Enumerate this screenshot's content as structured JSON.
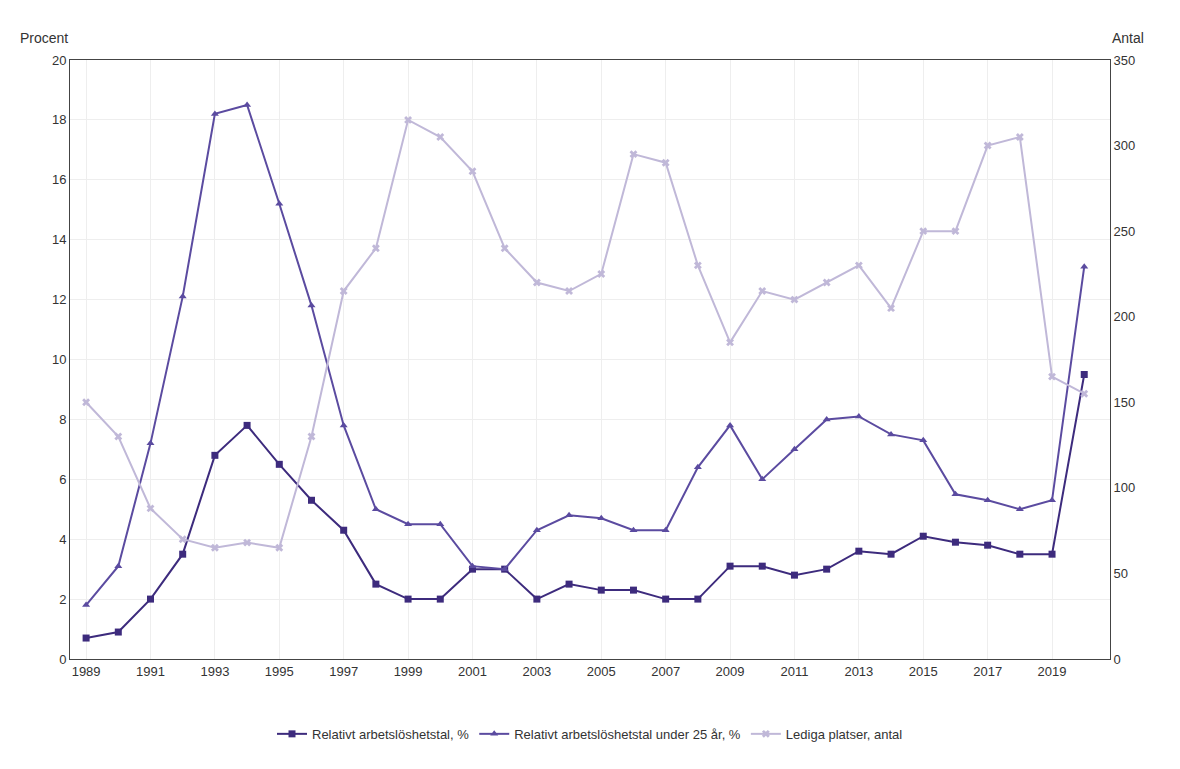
{
  "chart_data": {
    "type": "line",
    "ylabel": "Procent",
    "y2label": "Antal",
    "x": [
      1989,
      1990,
      1991,
      1992,
      1993,
      1994,
      1995,
      1996,
      1997,
      1998,
      1999,
      2000,
      2001,
      2002,
      2003,
      2004,
      2005,
      2006,
      2007,
      2008,
      2009,
      2010,
      2011,
      2012,
      2013,
      2014,
      2015,
      2016,
      2017,
      2018,
      2019,
      2020
    ],
    "series": [
      {
        "name": "Relativt arbetslöshetstal, %",
        "color": "#3D2B7D",
        "marker": "square",
        "values": [
          0.7,
          0.9,
          2.0,
          3.5,
          6.8,
          7.8,
          6.5,
          5.3,
          4.3,
          2.5,
          2.0,
          2.0,
          3.0,
          3.0,
          2.0,
          2.5,
          2.3,
          2.3,
          2.0,
          2.0,
          3.1,
          3.1,
          2.8,
          3.0,
          3.6,
          3.5,
          4.1,
          3.9,
          3.8,
          3.5,
          3.5,
          9.5
        ]
      },
      {
        "name": "Relativt arbetslöshetstal under 25 år, %",
        "color": "#5B4BA0",
        "marker": "triangle-up",
        "values": [
          1.8,
          3.1,
          7.2,
          12.1,
          18.2,
          18.5,
          15.2,
          11.8,
          7.8,
          5.0,
          4.5,
          4.5,
          3.1,
          3.0,
          4.3,
          4.8,
          4.7,
          4.3,
          4.3,
          6.4,
          7.8,
          6.0,
          7.0,
          8.0,
          8.1,
          7.5,
          7.3,
          5.5,
          5.3,
          5.0,
          5.3,
          13.1
        ]
      },
      {
        "name": "Lediga platser, antal",
        "color": "#C0B8D8",
        "marker": "x",
        "axis": "y2",
        "values": [
          150,
          130,
          88,
          70,
          65,
          68,
          65,
          130,
          215,
          240,
          315,
          305,
          285,
          240,
          220,
          215,
          225,
          295,
          290,
          230,
          185,
          215,
          210,
          220,
          230,
          205,
          250,
          250,
          300,
          305,
          165,
          155
        ]
      }
    ],
    "xlim": [
      1988.5,
      2020.8
    ],
    "xticks": [
      1989,
      1991,
      1993,
      1995,
      1997,
      1999,
      2001,
      2003,
      2005,
      2007,
      2009,
      2011,
      2013,
      2015,
      2017,
      2019
    ],
    "ylim": [
      0,
      20
    ],
    "yticks": [
      0,
      2,
      4,
      6,
      8,
      10,
      12,
      14,
      16,
      18,
      20
    ],
    "y2lim": [
      0,
      350
    ],
    "y2ticks": [
      0,
      50,
      100,
      150,
      200,
      250,
      300,
      350
    ],
    "grid": true,
    "legend": "bottom"
  }
}
